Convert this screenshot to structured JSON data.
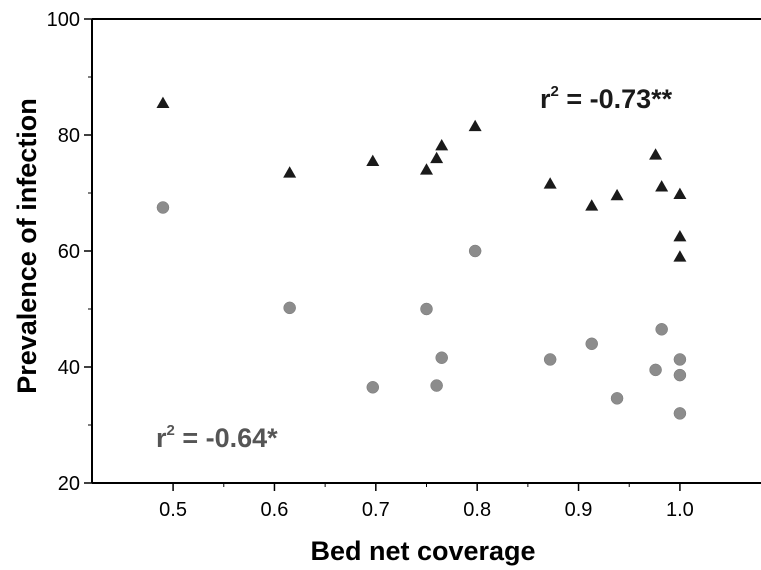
{
  "chart_data": {
    "type": "scatter",
    "title": "",
    "xlabel": "Bed net coverage",
    "ylabel": "Prevalence of infection",
    "xlim": [
      0.42,
      1.08
    ],
    "ylim": [
      20,
      100
    ],
    "xticks": [
      0.5,
      0.6,
      0.7,
      0.8,
      0.9,
      1.0
    ],
    "xtick_labels": [
      "0.5",
      "0.6",
      "0.7",
      "0.8",
      "0.9",
      "1.0"
    ],
    "yticks": [
      20,
      40,
      60,
      80,
      100
    ],
    "ytick_labels": [
      "20",
      "40",
      "60",
      "80",
      "100"
    ],
    "grid": false,
    "series": [
      {
        "marker": "triangle",
        "color": "#1a1a1a",
        "annotation": "r² = -0.73**",
        "annotation_parts": {
          "r": "r",
          "sup": "2",
          "rest": " = -0.73**"
        },
        "points": [
          [
            0.49,
            85.5
          ],
          [
            0.615,
            73.5
          ],
          [
            0.697,
            75.5
          ],
          [
            0.75,
            74.0
          ],
          [
            0.76,
            76.0
          ],
          [
            0.765,
            78.2
          ],
          [
            0.798,
            81.5
          ],
          [
            0.872,
            71.6
          ],
          [
            0.913,
            67.8
          ],
          [
            0.938,
            69.6
          ],
          [
            0.976,
            76.6
          ],
          [
            0.982,
            71.1
          ],
          [
            1.0,
            69.8
          ],
          [
            1.0,
            62.5
          ],
          [
            1.0,
            59.0
          ]
        ]
      },
      {
        "marker": "circle",
        "color": "#8c8c8c",
        "annotation": "r² = -0.64*",
        "annotation_parts": {
          "r": "r",
          "sup": "2",
          "rest": " = -0.64*"
        },
        "points": [
          [
            0.49,
            67.5
          ],
          [
            0.615,
            50.2
          ],
          [
            0.697,
            36.5
          ],
          [
            0.75,
            50.0
          ],
          [
            0.76,
            36.8
          ],
          [
            0.765,
            41.6
          ],
          [
            0.798,
            60.0
          ],
          [
            0.872,
            41.3
          ],
          [
            0.913,
            44.0
          ],
          [
            0.938,
            34.6
          ],
          [
            0.976,
            39.5
          ],
          [
            0.982,
            46.5
          ],
          [
            1.0,
            41.3
          ],
          [
            1.0,
            38.6
          ],
          [
            1.0,
            32.0
          ]
        ]
      }
    ]
  }
}
